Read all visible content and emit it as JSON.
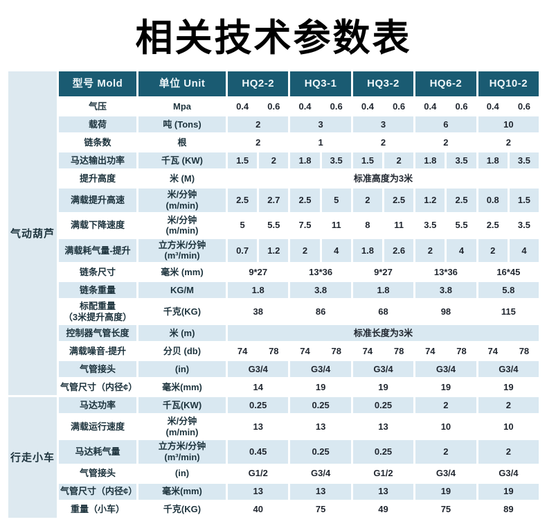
{
  "page": {
    "title": "相关技术参数表"
  },
  "colors": {
    "header_bg": "#1a5b72",
    "header_text": "#eef6f9",
    "stripe_bg": "#d9e8f1",
    "sidebar_bg": "#dde9f0",
    "label_text": "#1d333d",
    "value_text": "#212730",
    "title_text": "#000000"
  },
  "table": {
    "header": {
      "model_label": "型号 Mold",
      "unit_label": "单位 Unit",
      "models": [
        "HQ2-2",
        "HQ3-1",
        "HQ3-2",
        "HQ6-2",
        "HQ10-2"
      ]
    },
    "sections": [
      {
        "name": "气动葫芦",
        "rows": [
          {
            "label": "气压",
            "unit": "Mpa",
            "type": "pairs",
            "values": [
              "0.4",
              "0.6",
              "0.4",
              "0.6",
              "0.4",
              "0.6",
              "0.4",
              "0.6",
              "0.4",
              "0.6"
            ]
          },
          {
            "label": "载荷",
            "unit": "吨 (Tons)",
            "type": "merged",
            "values": [
              "2",
              "3",
              "3",
              "6",
              "10"
            ]
          },
          {
            "label": "链条数",
            "unit": "根",
            "type": "merged",
            "values": [
              "2",
              "1",
              "2",
              "2",
              "2"
            ]
          },
          {
            "label": "马达输出功率",
            "unit": "千瓦 (KW)",
            "type": "pairs",
            "values": [
              "1.5",
              "2",
              "1.8",
              "3.5",
              "1.5",
              "2",
              "1.8",
              "3.5",
              "1.8",
              "3.5"
            ]
          },
          {
            "label": "提升高度",
            "unit": "米 (M)",
            "type": "span",
            "text": "标准高度为3米"
          },
          {
            "label": "满载提升高速",
            "unit": "米/分钟\n(m/min)",
            "type": "pairs",
            "values": [
              "2.5",
              "2.7",
              "2.5",
              "5",
              "2",
              "2.5",
              "1.2",
              "2.5",
              "0.8",
              "1.5"
            ]
          },
          {
            "label": "满载下降速度",
            "unit": "米/分钟\n(m/min)",
            "type": "pairs",
            "values": [
              "5",
              "5.5",
              "7.5",
              "11",
              "8",
              "11",
              "3.5",
              "5.5",
              "2.5",
              "3.5"
            ]
          },
          {
            "label": "满载耗气量-提升",
            "unit": "立方米/分钟\n(m³/min)",
            "type": "pairs",
            "values": [
              "0.7",
              "1.2",
              "2",
              "4",
              "1.8",
              "2.6",
              "2",
              "4",
              "2",
              "4"
            ]
          },
          {
            "label": "链条尺寸",
            "unit": "毫米 (mm)",
            "type": "merged",
            "values": [
              "9*27",
              "13*36",
              "9*27",
              "13*36",
              "16*45"
            ]
          },
          {
            "label": "链条重量",
            "unit": "KG/M",
            "type": "merged",
            "values": [
              "1.8",
              "3.8",
              "1.8",
              "3.8",
              "5.8"
            ]
          },
          {
            "label": "标配重量\n（3米提升高度）",
            "unit": "千克(KG)",
            "type": "merged",
            "values": [
              "38",
              "86",
              "68",
              "98",
              "115"
            ]
          },
          {
            "label": "控制器气管长度",
            "unit": "米 (m)",
            "type": "span",
            "text": "标准长度为3米"
          },
          {
            "label": "满载噪音-提升",
            "unit": "分贝 (db)",
            "type": "pairs",
            "values": [
              "74",
              "78",
              "74",
              "78",
              "74",
              "78",
              "74",
              "78",
              "74",
              "78"
            ]
          },
          {
            "label": "气管接头",
            "unit": "(in)",
            "type": "merged",
            "values": [
              "G3/4",
              "G3/4",
              "G3/4",
              "G3/4",
              "G3/4"
            ]
          },
          {
            "label": "气管尺寸（内径¢）",
            "unit": "毫米(mm)",
            "type": "merged",
            "values": [
              "14",
              "19",
              "19",
              "19",
              "19"
            ]
          }
        ]
      },
      {
        "name": "行走小车",
        "rows": [
          {
            "label": "马达功率",
            "unit": "千瓦(KW)",
            "type": "merged",
            "values": [
              "0.25",
              "0.25",
              "0.25",
              "2",
              "2"
            ]
          },
          {
            "label": "满载运行速度",
            "unit": "米/分钟\n(m/min)",
            "type": "merged",
            "values": [
              "13",
              "13",
              "13",
              "10",
              "10"
            ]
          },
          {
            "label": "马达耗气量",
            "unit": "立方米/分钟\n(m³/min)",
            "type": "merged",
            "values": [
              "0.45",
              "0.25",
              "0.25",
              "2",
              "2"
            ]
          },
          {
            "label": "气管接头",
            "unit": "(in)",
            "type": "merged",
            "values": [
              "G1/2",
              "G3/4",
              "G1/2",
              "G3/4",
              "G3/4"
            ]
          },
          {
            "label": "气管尺寸（内径¢）",
            "unit": "毫米(mm)",
            "type": "merged",
            "values": [
              "13",
              "13",
              "13",
              "19",
              "19"
            ]
          },
          {
            "label": "重量（小车）",
            "unit": "千克(KG)",
            "type": "merged",
            "values": [
              "40",
              "75",
              "49",
              "75",
              "89"
            ]
          }
        ]
      }
    ]
  }
}
